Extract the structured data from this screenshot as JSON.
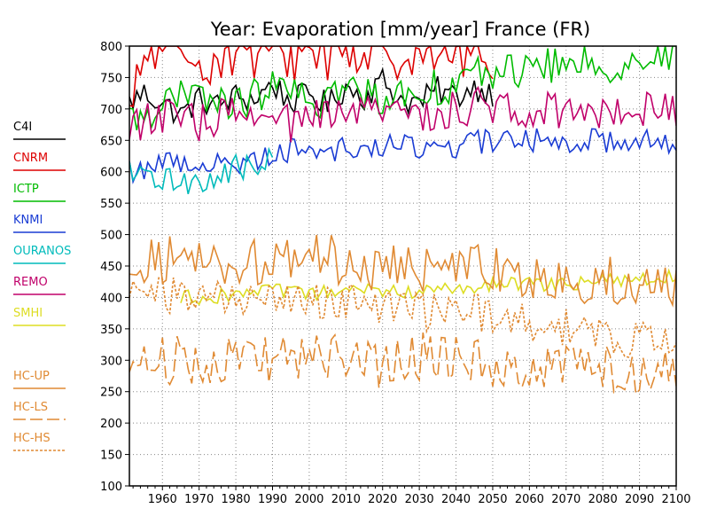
{
  "chart_data": {
    "type": "line",
    "title": "Year: Evaporation [mm/year] France (FR)",
    "xlabel": "",
    "ylabel": "",
    "xlim": [
      1951,
      2100
    ],
    "ylim": [
      100,
      800
    ],
    "x_ticks": [
      1960,
      1970,
      1980,
      1990,
      2000,
      2010,
      2020,
      2030,
      2040,
      2050,
      2060,
      2070,
      2080,
      2090,
      2100
    ],
    "y_ticks": [
      100,
      150,
      200,
      250,
      300,
      350,
      400,
      450,
      500,
      550,
      600,
      650,
      700,
      750,
      800
    ],
    "grid": true,
    "legend_position": "left",
    "series": [
      {
        "name": "C4I",
        "color": "#000000",
        "style": "solid",
        "x_range": [
          1951,
          2050
        ],
        "points": [
          [
            1951,
            710
          ],
          [
            1955,
            725
          ],
          [
            1960,
            710
          ],
          [
            1965,
            690
          ],
          [
            1970,
            715
          ],
          [
            1975,
            705
          ],
          [
            1980,
            720
          ],
          [
            1985,
            715
          ],
          [
            1990,
            740
          ],
          [
            1995,
            710
          ],
          [
            2000,
            725
          ],
          [
            2005,
            705
          ],
          [
            2010,
            735
          ],
          [
            2015,
            720
          ],
          [
            2020,
            745
          ],
          [
            2025,
            715
          ],
          [
            2030,
            710
          ],
          [
            2035,
            730
          ],
          [
            2040,
            720
          ],
          [
            2045,
            735
          ],
          [
            2050,
            725
          ]
        ]
      },
      {
        "name": "CNRM",
        "color": "#dd0000",
        "style": "solid",
        "x_range": [
          1951,
          2050
        ],
        "points": [
          [
            1951,
            680
          ],
          [
            1955,
            780
          ],
          [
            1960,
            800
          ],
          [
            1965,
            760
          ],
          [
            1970,
            790
          ],
          [
            1975,
            775
          ],
          [
            1980,
            800
          ],
          [
            1985,
            780
          ],
          [
            1990,
            800
          ],
          [
            1995,
            785
          ],
          [
            2000,
            800
          ],
          [
            2005,
            790
          ],
          [
            2010,
            800
          ],
          [
            2015,
            785
          ],
          [
            2020,
            800
          ],
          [
            2025,
            790
          ],
          [
            2030,
            800
          ],
          [
            2035,
            780
          ],
          [
            2040,
            800
          ],
          [
            2045,
            785
          ],
          [
            2050,
            790
          ]
        ]
      },
      {
        "name": "ICTP",
        "color": "#00bb00",
        "style": "solid",
        "x_range": [
          1951,
          2100
        ],
        "points": [
          [
            1951,
            680
          ],
          [
            1960,
            710
          ],
          [
            1970,
            720
          ],
          [
            1980,
            705
          ],
          [
            1990,
            735
          ],
          [
            2000,
            710
          ],
          [
            2010,
            730
          ],
          [
            2020,
            720
          ],
          [
            2030,
            730
          ],
          [
            2040,
            740
          ],
          [
            2050,
            760
          ],
          [
            2060,
            765
          ],
          [
            2070,
            770
          ],
          [
            2080,
            770
          ],
          [
            2090,
            775
          ],
          [
            2100,
            785
          ]
        ]
      },
      {
        "name": "KNMI",
        "color": "#1a3cd4",
        "style": "solid",
        "x_range": [
          1951,
          2100
        ],
        "points": [
          [
            1951,
            600
          ],
          [
            1960,
            615
          ],
          [
            1970,
            615
          ],
          [
            1980,
            610
          ],
          [
            1990,
            630
          ],
          [
            2000,
            640
          ],
          [
            2010,
            635
          ],
          [
            2020,
            640
          ],
          [
            2030,
            640
          ],
          [
            2040,
            640
          ],
          [
            2050,
            650
          ],
          [
            2060,
            650
          ],
          [
            2070,
            650
          ],
          [
            2080,
            650
          ],
          [
            2090,
            655
          ],
          [
            2100,
            640
          ]
        ]
      },
      {
        "name": "OURANOS",
        "color": "#00bbbb",
        "style": "solid",
        "x_range": [
          1951,
          1990
        ],
        "points": [
          [
            1951,
            595
          ],
          [
            1955,
            590
          ],
          [
            1960,
            585
          ],
          [
            1965,
            590
          ],
          [
            1970,
            580
          ],
          [
            1975,
            590
          ],
          [
            1980,
            610
          ],
          [
            1985,
            600
          ],
          [
            1990,
            625
          ]
        ]
      },
      {
        "name": "REMO",
        "color": "#c0006a",
        "style": "solid",
        "x_range": [
          1951,
          2100
        ],
        "points": [
          [
            1951,
            680
          ],
          [
            1960,
            685
          ],
          [
            1970,
            680
          ],
          [
            1980,
            690
          ],
          [
            1990,
            675
          ],
          [
            2000,
            680
          ],
          [
            2010,
            690
          ],
          [
            2020,
            695
          ],
          [
            2030,
            690
          ],
          [
            2040,
            700
          ],
          [
            2050,
            705
          ],
          [
            2060,
            700
          ],
          [
            2070,
            700
          ],
          [
            2080,
            700
          ],
          [
            2090,
            705
          ],
          [
            2100,
            700
          ]
        ]
      },
      {
        "name": "SMHI",
        "color": "#dddd22",
        "style": "solid",
        "x_range": [
          1965,
          2100
        ],
        "points": [
          [
            1965,
            400
          ],
          [
            1970,
            400
          ],
          [
            1980,
            405
          ],
          [
            1990,
            410
          ],
          [
            2000,
            405
          ],
          [
            2010,
            410
          ],
          [
            2020,
            410
          ],
          [
            2030,
            410
          ],
          [
            2040,
            415
          ],
          [
            2050,
            420
          ],
          [
            2060,
            420
          ],
          [
            2070,
            420
          ],
          [
            2080,
            425
          ],
          [
            2090,
            430
          ],
          [
            2100,
            435
          ]
        ]
      },
      {
        "name": "HC-UP",
        "color": "#e08a33",
        "style": "solid",
        "x_range": [
          1951,
          2100
        ],
        "points": [
          [
            1951,
            460
          ],
          [
            1960,
            460
          ],
          [
            1970,
            460
          ],
          [
            1980,
            455
          ],
          [
            1990,
            455
          ],
          [
            2000,
            470
          ],
          [
            2010,
            455
          ],
          [
            2020,
            445
          ],
          [
            2030,
            445
          ],
          [
            2040,
            450
          ],
          [
            2050,
            445
          ],
          [
            2060,
            430
          ],
          [
            2070,
            425
          ],
          [
            2080,
            430
          ],
          [
            2090,
            420
          ],
          [
            2100,
            420
          ]
        ]
      },
      {
        "name": "HC-LS",
        "color": "#e08a33",
        "style": "long-dash",
        "x_range": [
          1951,
          2100
        ],
        "points": [
          [
            1951,
            300
          ],
          [
            1960,
            300
          ],
          [
            1970,
            300
          ],
          [
            1980,
            300
          ],
          [
            1990,
            300
          ],
          [
            2000,
            310
          ],
          [
            2010,
            300
          ],
          [
            2020,
            295
          ],
          [
            2030,
            305
          ],
          [
            2040,
            300
          ],
          [
            2050,
            290
          ],
          [
            2060,
            295
          ],
          [
            2070,
            290
          ],
          [
            2080,
            285
          ],
          [
            2090,
            285
          ],
          [
            2100,
            285
          ]
        ]
      },
      {
        "name": "HC-HS",
        "color": "#e08a33",
        "style": "short-dash",
        "x_range": [
          1951,
          2100
        ],
        "points": [
          [
            1951,
            410
          ],
          [
            1960,
            405
          ],
          [
            1970,
            400
          ],
          [
            1980,
            395
          ],
          [
            1990,
            395
          ],
          [
            2000,
            400
          ],
          [
            2010,
            390
          ],
          [
            2020,
            380
          ],
          [
            2030,
            375
          ],
          [
            2040,
            380
          ],
          [
            2050,
            370
          ],
          [
            2060,
            355
          ],
          [
            2070,
            350
          ],
          [
            2080,
            345
          ],
          [
            2090,
            330
          ],
          [
            2100,
            325
          ]
        ]
      }
    ]
  }
}
